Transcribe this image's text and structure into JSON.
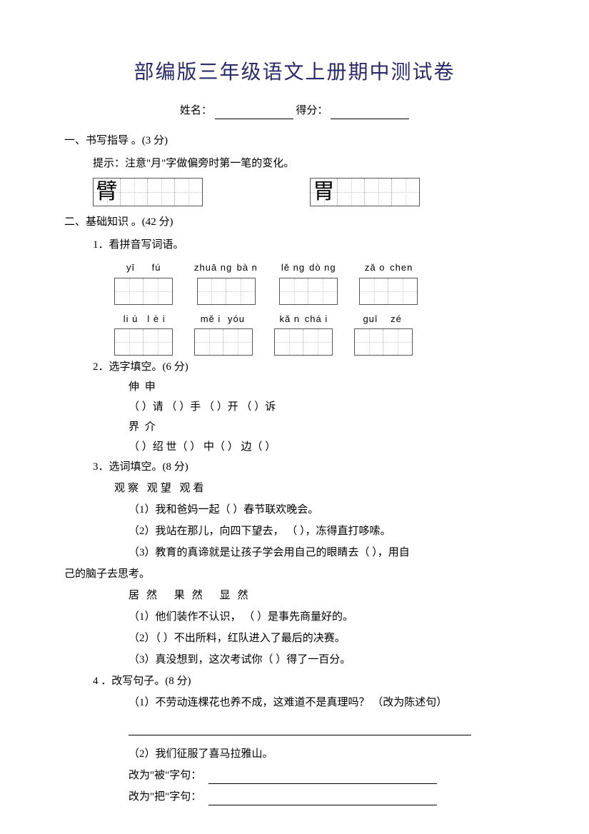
{
  "title": "部编版三年级语文上册期中测试卷",
  "header": {
    "name_label": "姓名：",
    "score_label": "得分："
  },
  "s1": {
    "head": "一、书写指导 。(3 分)",
    "hint": "提示：注意\"月\"字做偏旁时第一笔的变化。",
    "chars": [
      "臂",
      "胃"
    ]
  },
  "s2": {
    "head": "二、基础知识 。(42 分)",
    "q1": {
      "label": "1．看拼音写词语。",
      "row1": [
        {
          "p": [
            "yī",
            "fú"
          ]
        },
        {
          "p": [
            "zhuā ng",
            "bà n"
          ]
        },
        {
          "p": [
            "lě ng",
            "dò ng"
          ]
        },
        {
          "p": [
            "zǎ o",
            "chen"
          ]
        }
      ],
      "row2": [
        {
          "p": [
            "li ú",
            "l è i"
          ]
        },
        {
          "p": [
            "mě i",
            "yóu"
          ]
        },
        {
          "p": [
            "kǎ n",
            "chá i"
          ]
        },
        {
          "p": [
            "guī",
            "zé"
          ]
        }
      ]
    },
    "q2": {
      "label": "2．选字填空。(6 分)",
      "pair1": "伸    申",
      "line1": "（      ）请        （      ）手      （      ）开        （      ）诉",
      "pair2": "界    介",
      "line2": "（      ）绍          世（      ）      中（      ）        边（      ）"
    },
    "q3": {
      "label": "3．选词填空。(8 分)",
      "group1": "观察      观望      观看",
      "g1_1": "（1）我和爸妈一起（              ）春节联欢晚会。",
      "g1_2": "（2）我站在那儿，向四下望去，  （              ），冻得直打哆嗦。",
      "g1_3a": "（3）教育的真谛就是让孩子学会用自己的眼睛去（                  ），用自",
      "g1_3b": "己的脑子去思考。",
      "group2": "居然      果然      显然",
      "g2_1": "（1）他们装作不认识， （              ）是事先商量好的。",
      "g2_2": "（2）（                  ）不出所料，红队进入了最后的决赛。",
      "g2_3": "（3）真没想到，这次考试你（                ）得了一百分。"
    },
    "q4": {
      "label": "4 ．改写句子。(8 分)",
      "i1": "（1）不劳动连棵花也养不成，这难道不是真理吗？ （改为陈述句）",
      "i2": "（2）我们征服了喜马拉雅山。",
      "bei": "改为\"被\"字句：",
      "ba": "改为\"把\"字句："
    }
  }
}
